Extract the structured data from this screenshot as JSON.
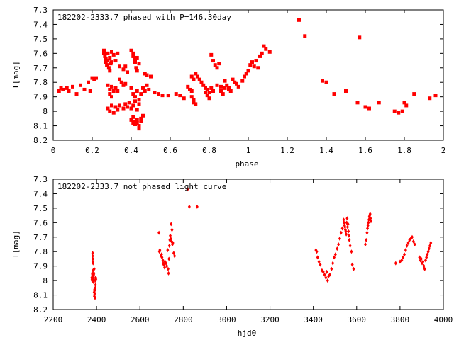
{
  "chart_data": [
    {
      "type": "scatter",
      "title": "182202-2333.7 phased with P=146.30day",
      "xlabel": "phase",
      "ylabel": "I[mag]",
      "xlim": [
        0,
        2
      ],
      "ylim": [
        7.3,
        8.2
      ],
      "y_inverted": true,
      "grid": false,
      "marker": "square",
      "color": "#ff0000",
      "xticks": [
        "0",
        "0.2",
        "0.4",
        "0.6",
        "0.8",
        "1",
        "1.2",
        "1.4",
        "1.6",
        "1.8",
        "2"
      ],
      "yticks": [
        "7.3",
        "7.4",
        "7.5",
        "7.6",
        "7.7",
        "7.8",
        "7.9",
        "8",
        "8.1",
        "8.2"
      ],
      "x": [
        0.03,
        0.04,
        0.05,
        0.07,
        0.08,
        0.1,
        0.12,
        0.14,
        0.16,
        0.18,
        0.19,
        0.2,
        0.21,
        0.22,
        0.26,
        0.26,
        0.265,
        0.27,
        0.27,
        0.275,
        0.28,
        0.28,
        0.285,
        0.29,
        0.29,
        0.295,
        0.3,
        0.3,
        0.31,
        0.32,
        0.33,
        0.34,
        0.28,
        0.29,
        0.29,
        0.3,
        0.3,
        0.31,
        0.32,
        0.33,
        0.34,
        0.35,
        0.36,
        0.37,
        0.28,
        0.29,
        0.3,
        0.31,
        0.32,
        0.33,
        0.34,
        0.36,
        0.37,
        0.38,
        0.4,
        0.41,
        0.41,
        0.42,
        0.42,
        0.425,
        0.43,
        0.43,
        0.44,
        0.4,
        0.41,
        0.41,
        0.42,
        0.42,
        0.43,
        0.43,
        0.44,
        0.44,
        0.45,
        0.45,
        0.46,
        0.4,
        0.41,
        0.42,
        0.43,
        0.44,
        0.45,
        0.46,
        0.47,
        0.48,
        0.49,
        0.39,
        0.4,
        0.41,
        0.42,
        0.43,
        0.44,
        0.36,
        0.37,
        0.38,
        0.47,
        0.48,
        0.5,
        0.52,
        0.54,
        0.56,
        0.59,
        0.63,
        0.65,
        0.67,
        0.69,
        0.7,
        0.71,
        0.71,
        0.72,
        0.73,
        0.74,
        0.75,
        0.76,
        0.77,
        0.78,
        0.79,
        0.8,
        0.81,
        0.82,
        0.83,
        0.84,
        0.85,
        0.86,
        0.87,
        0.88,
        0.89,
        0.9,
        0.91,
        0.92,
        0.93,
        0.94,
        0.95,
        0.97,
        0.98,
        0.99,
        1.0,
        1.01,
        1.02,
        1.03,
        1.04,
        1.05,
        1.06,
        1.07,
        1.08,
        1.09,
        1.11,
        0.71,
        0.72,
        0.72,
        0.73,
        0.78,
        0.79,
        0.8,
        0.81,
        0.82,
        0.84,
        0.86,
        0.88,
        0.9,
        1.26,
        1.29,
        1.38,
        1.4,
        1.44,
        1.5,
        1.56,
        1.57,
        1.6,
        1.62,
        1.67,
        1.75,
        1.77,
        1.79,
        1.8,
        1.81,
        1.85,
        1.93,
        1.96
      ],
      "y": [
        7.86,
        7.84,
        7.85,
        7.84,
        7.86,
        7.83,
        7.88,
        7.82,
        7.85,
        7.8,
        7.86,
        7.77,
        7.78,
        7.77,
        7.58,
        7.6,
        7.62,
        7.64,
        7.66,
        7.68,
        7.6,
        7.65,
        7.7,
        7.72,
        7.63,
        7.67,
        7.59,
        7.66,
        7.61,
        7.65,
        7.6,
        7.69,
        7.82,
        7.85,
        7.88,
        7.83,
        7.9,
        7.86,
        7.84,
        7.86,
        7.78,
        7.8,
        7.82,
        7.81,
        7.98,
        8.0,
        7.96,
        8.01,
        7.97,
        7.99,
        7.96,
        7.98,
        7.95,
        7.97,
        7.58,
        7.6,
        7.62,
        7.64,
        7.66,
        7.7,
        7.72,
        7.63,
        7.67,
        8.06,
        8.08,
        8.04,
        8.07,
        8.09,
        8.06,
        8.08,
        8.1,
        8.12,
        8.05,
        8.07,
        8.03,
        7.84,
        7.88,
        7.9,
        7.86,
        7.92,
        7.88,
        7.84,
        7.86,
        7.82,
        7.85,
        7.94,
        7.98,
        7.96,
        7.93,
        7.99,
        7.95,
        7.71,
        7.69,
        7.73,
        7.74,
        7.75,
        7.76,
        7.87,
        7.88,
        7.89,
        7.89,
        7.88,
        7.89,
        7.91,
        7.83,
        7.85,
        7.86,
        7.76,
        7.78,
        7.74,
        7.76,
        7.78,
        7.8,
        7.82,
        7.84,
        7.85,
        7.87,
        7.61,
        7.65,
        7.68,
        7.7,
        7.67,
        7.86,
        7.88,
        7.79,
        7.82,
        7.84,
        7.86,
        7.78,
        7.8,
        7.81,
        7.83,
        7.79,
        7.76,
        7.74,
        7.72,
        7.68,
        7.66,
        7.69,
        7.65,
        7.7,
        7.62,
        7.6,
        7.55,
        7.57,
        7.59,
        7.9,
        7.92,
        7.94,
        7.95,
        7.87,
        7.89,
        7.91,
        7.84,
        7.86,
        7.82,
        7.83,
        7.84,
        7.85,
        7.37,
        7.48,
        7.79,
        7.8,
        7.88,
        7.86,
        7.94,
        7.49,
        7.97,
        7.98,
        7.94,
        8.0,
        8.01,
        8.0,
        7.94,
        7.96,
        7.88,
        7.91,
        7.89
      ]
    },
    {
      "type": "scatter",
      "title": "182202-2333.7 not phased light curve",
      "xlabel": "hjd0",
      "ylabel": "I[mag]",
      "xlim": [
        2200,
        4000
      ],
      "ylim": [
        7.3,
        8.2
      ],
      "y_inverted": true,
      "grid": false,
      "marker": "diamond",
      "color": "#ff0000",
      "xticks": [
        "2200",
        "2400",
        "2600",
        "2800",
        "3000",
        "3200",
        "3400",
        "3600",
        "3800",
        "4000"
      ],
      "yticks": [
        "7.3",
        "7.4",
        "7.5",
        "7.6",
        "7.7",
        "7.8",
        "7.9",
        "8",
        "8.1",
        "8.2"
      ],
      "x": [
        2378,
        2379,
        2380,
        2380,
        2381,
        2382,
        2382,
        2383,
        2383,
        2384,
        2384,
        2385,
        2385,
        2386,
        2386,
        2387,
        2388,
        2389,
        2389,
        2390,
        2390,
        2391,
        2391,
        2392,
        2393,
        2394,
        2395,
        2395,
        2396,
        2397,
        2688,
        2690,
        2692,
        2698,
        2700,
        2702,
        2706,
        2708,
        2710,
        2714,
        2716,
        2720,
        2724,
        2728,
        2730,
        2732,
        2734,
        2736,
        2738,
        2740,
        2742,
        2744,
        2746,
        2748,
        2750,
        2752,
        2756,
        2760,
        2820,
        2828,
        2864,
        3412,
        3416,
        3420,
        3426,
        3432,
        3440,
        3446,
        3452,
        3458,
        3462,
        3466,
        3470,
        3476,
        3484,
        3490,
        3496,
        3502,
        3510,
        3516,
        3522,
        3528,
        3534,
        3540,
        3542,
        3544,
        3546,
        3548,
        3550,
        3552,
        3554,
        3556,
        3558,
        3560,
        3562,
        3564,
        3566,
        3570,
        3576,
        3580,
        3586,
        3640,
        3644,
        3648,
        3650,
        3652,
        3654,
        3656,
        3658,
        3660,
        3662,
        3664,
        3666,
        3780,
        3800,
        3808,
        3814,
        3820,
        3826,
        3832,
        3838,
        3844,
        3850,
        3856,
        3862,
        3868,
        3890,
        3894,
        3898,
        3902,
        3906,
        3910,
        3914,
        3918,
        3922,
        3926,
        3930,
        3934,
        3938,
        3942
      ],
      "y": [
        7.98,
        7.99,
        8.0,
        7.95,
        7.96,
        7.83,
        7.81,
        7.85,
        7.87,
        7.88,
        7.93,
        7.97,
        7.98,
        8.01,
        7.99,
        7.96,
        7.95,
        7.92,
        8.08,
        8.1,
        8.11,
        8.07,
        8.06,
        8.09,
        8.12,
        8.05,
        8.03,
        8.0,
        7.98,
        7.99,
        7.67,
        7.8,
        7.79,
        7.83,
        7.82,
        7.84,
        7.86,
        7.88,
        7.89,
        7.91,
        7.87,
        7.88,
        7.9,
        7.79,
        7.92,
        7.95,
        7.85,
        7.76,
        7.72,
        7.69,
        7.71,
        7.61,
        7.73,
        7.65,
        7.75,
        7.74,
        7.81,
        7.83,
        7.37,
        7.49,
        7.49,
        7.79,
        7.8,
        7.84,
        7.87,
        7.89,
        7.93,
        7.94,
        7.96,
        7.98,
        7.94,
        8.0,
        7.97,
        7.96,
        7.92,
        7.88,
        7.84,
        7.82,
        7.78,
        7.75,
        7.71,
        7.67,
        7.64,
        7.58,
        7.6,
        7.62,
        7.63,
        7.65,
        7.66,
        7.68,
        7.6,
        7.57,
        7.63,
        7.61,
        7.66,
        7.69,
        7.72,
        7.76,
        7.8,
        7.89,
        7.92,
        7.75,
        7.72,
        7.67,
        7.64,
        7.62,
        7.6,
        7.58,
        7.56,
        7.55,
        7.54,
        7.57,
        7.59,
        7.88,
        7.87,
        7.86,
        7.84,
        7.82,
        7.79,
        7.76,
        7.74,
        7.72,
        7.71,
        7.7,
        7.73,
        7.75,
        7.84,
        7.86,
        7.85,
        7.88,
        7.87,
        7.9,
        7.92,
        7.86,
        7.84,
        7.82,
        7.8,
        7.78,
        7.76,
        7.74
      ]
    }
  ]
}
